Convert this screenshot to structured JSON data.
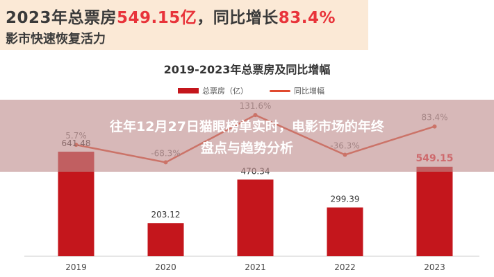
{
  "banner": {
    "headline_prefix": "2023年总票房",
    "headline_value": "549.15亿",
    "headline_mid": "，同比增长",
    "headline_growth": "83.4%",
    "subtitle": "影市快速恢复活力"
  },
  "overlay": {
    "line1": "往年12月27日猫眼榜单实时，电影市场的年终",
    "line2": "盘点与趋势分析"
  },
  "chart_data": {
    "type": "bar",
    "title": "2019-2023年总票房及同比增幅",
    "categories": [
      "2019",
      "2020",
      "2021",
      "2022",
      "2023"
    ],
    "series": [
      {
        "name": "总票房（亿）",
        "type": "bar",
        "values": [
          641.48,
          203.12,
          470.34,
          299.39,
          549.15
        ],
        "labels": [
          "641.48",
          "203.12",
          "470.34",
          "299.39",
          "549.15"
        ]
      },
      {
        "name": "同比增幅",
        "type": "line",
        "values": [
          5.7,
          -68.3,
          131.6,
          -36.3,
          83.4
        ],
        "labels": [
          "5.7%",
          "-68.3%",
          "131.6%",
          "-36.3%",
          "83.4%"
        ]
      }
    ],
    "ylim": [
      0,
      680
    ],
    "legend": "top-center",
    "grid": false,
    "colors": {
      "bar": "#c4161c",
      "line": "#e04a2f",
      "highlight": "#e8333a"
    }
  }
}
